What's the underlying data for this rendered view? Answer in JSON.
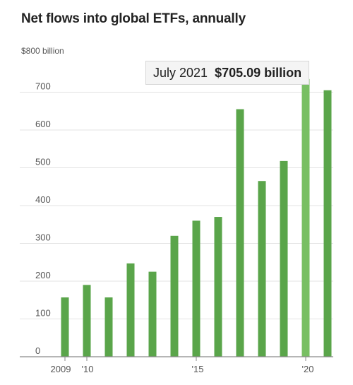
{
  "chart_data": {
    "type": "bar",
    "title": "Net flows into global ETFs, annually",
    "xlabel": "",
    "ylabel": "",
    "y_unit_label": "$800 billion",
    "ylim": [
      0,
      800
    ],
    "y_ticks": [
      0,
      100,
      200,
      300,
      400,
      500,
      600,
      700
    ],
    "y_tick_labels": [
      "0",
      "100",
      "200",
      "300",
      "400",
      "500",
      "600",
      "700"
    ],
    "x_tick_labels": [
      "2009",
      "'10",
      "'15",
      "'20"
    ],
    "categories": [
      "2009",
      "2010",
      "2011",
      "2012",
      "2013",
      "2014",
      "2015",
      "2016",
      "2017",
      "2018",
      "2019",
      "2020",
      "2021"
    ],
    "values": [
      157,
      190,
      157,
      247,
      225,
      320,
      360,
      370,
      655,
      465,
      518,
      735,
      705.09
    ],
    "grid": true,
    "bar_color": "#5aa54a",
    "highlight_bar_color": "#78bf63"
  },
  "tooltip": {
    "date": "July 2021",
    "value": "$705.09 billion"
  }
}
